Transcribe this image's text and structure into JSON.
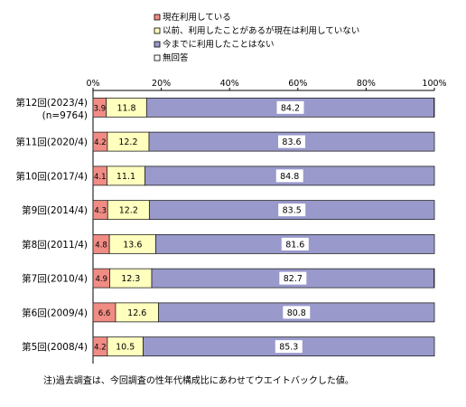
{
  "chart_data": {
    "type": "bar",
    "orientation": "horizontal",
    "stacked": true,
    "percent_stacked": true,
    "legend_position": "top",
    "xlim": [
      0,
      100
    ],
    "x_ticks": [
      "0%",
      "20%",
      "40%",
      "60%",
      "80%",
      "100%"
    ],
    "grid": false,
    "categories": [
      {
        "label": "第12回(2023/4)",
        "sub": "(n=9764)"
      },
      {
        "label": "第11回(2020/4)",
        "sub": ""
      },
      {
        "label": "第10回(2017/4)",
        "sub": ""
      },
      {
        "label": "第9回(2014/4)",
        "sub": ""
      },
      {
        "label": "第8回(2011/4)",
        "sub": ""
      },
      {
        "label": "第7回(2010/4)",
        "sub": ""
      },
      {
        "label": "第6回(2009/4)",
        "sub": ""
      },
      {
        "label": "第5回(2008/4)",
        "sub": ""
      }
    ],
    "series": [
      {
        "name": "現在利用している",
        "color": "#f08c84",
        "values": [
          3.9,
          4.2,
          4.1,
          4.3,
          4.8,
          4.9,
          6.6,
          4.2
        ],
        "labels": [
          "3.9",
          "4.2",
          "4.1",
          "4.3",
          "4.8",
          "4.9",
          "6.6",
          "4.2"
        ]
      },
      {
        "name": "以前、利用したことがあるが現在は利用していない",
        "color": "#ffffbe",
        "values": [
          11.8,
          12.2,
          11.1,
          12.2,
          13.6,
          12.3,
          12.6,
          10.5
        ],
        "labels": [
          "11.8",
          "12.2",
          "11.1",
          "12.2",
          "13.6",
          "12.3",
          "12.6",
          "10.5"
        ]
      },
      {
        "name": "今までに利用したことはない",
        "color": "#9999cc",
        "values": [
          84.2,
          83.6,
          84.8,
          83.5,
          81.6,
          82.7,
          80.8,
          85.3
        ],
        "labels": [
          "84.2",
          "83.6",
          "84.8",
          "83.5",
          "81.6",
          "82.7",
          "80.8",
          "85.3"
        ]
      },
      {
        "name": "無回答",
        "color": "#ffffff",
        "values": [
          0.1,
          0,
          0,
          0,
          0,
          0.1,
          0,
          0
        ],
        "labels": []
      }
    ],
    "footnote": "注)過去調査は、今回調査の性年代構成比にあわせてウエイトバックした値。"
  }
}
